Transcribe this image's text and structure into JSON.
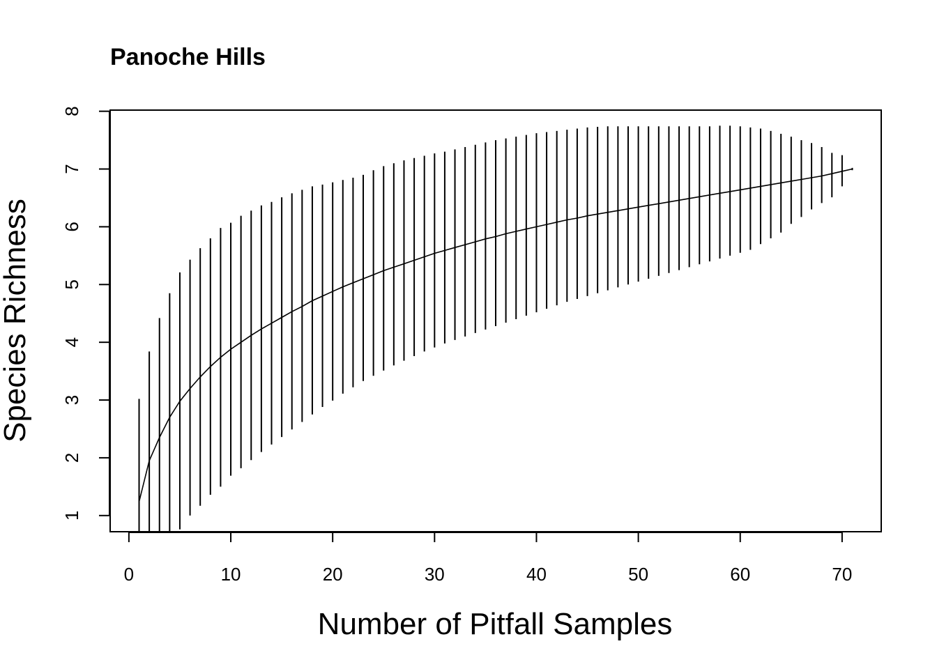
{
  "chart_data": {
    "type": "line",
    "title": "Panoche Hills",
    "xlabel": "Number of Pitfall Samples",
    "ylabel": "Species Richness",
    "xlim": [
      -1.84,
      73.84
    ],
    "ylim": [
      0.72,
      8.02
    ],
    "xticks": [
      0,
      10,
      20,
      30,
      40,
      50,
      60,
      70
    ],
    "yticks": [
      1,
      2,
      3,
      4,
      5,
      6,
      7,
      8
    ],
    "grid": false,
    "legend": "none",
    "series": [
      {
        "x": [
          1,
          2,
          3,
          4,
          5,
          6,
          7,
          8,
          9,
          10,
          11,
          12,
          13,
          14,
          15,
          16,
          17,
          18,
          19,
          20,
          21,
          22,
          23,
          24,
          25,
          26,
          27,
          28,
          29,
          30,
          31,
          32,
          33,
          34,
          35,
          36,
          37,
          38,
          39,
          40,
          41,
          42,
          43,
          44,
          45,
          46,
          47,
          48,
          49,
          50,
          51,
          52,
          53,
          54,
          55,
          56,
          57,
          58,
          59,
          60,
          61,
          62,
          63,
          64,
          65,
          66,
          67,
          68,
          69,
          70,
          71
        ],
        "y": [
          1.24,
          1.95,
          2.35,
          2.7,
          2.98,
          3.2,
          3.4,
          3.58,
          3.74,
          3.88,
          4.0,
          4.12,
          4.23,
          4.33,
          4.43,
          4.53,
          4.62,
          4.72,
          4.8,
          4.88,
          4.96,
          5.03,
          5.1,
          5.17,
          5.24,
          5.3,
          5.36,
          5.42,
          5.48,
          5.54,
          5.59,
          5.64,
          5.69,
          5.74,
          5.79,
          5.83,
          5.88,
          5.92,
          5.96,
          6.0,
          6.04,
          6.08,
          6.12,
          6.15,
          6.19,
          6.22,
          6.25,
          6.28,
          6.31,
          6.34,
          6.37,
          6.4,
          6.43,
          6.46,
          6.49,
          6.52,
          6.55,
          6.58,
          6.61,
          6.64,
          6.67,
          6.7,
          6.73,
          6.76,
          6.79,
          6.82,
          6.85,
          6.88,
          6.92,
          6.96,
          7.0
        ],
        "lower": [
          -0.53,
          0.07,
          0.29,
          0.55,
          0.76,
          1.0,
          1.17,
          1.36,
          1.5,
          1.69,
          1.82,
          1.96,
          2.1,
          2.23,
          2.36,
          2.49,
          2.62,
          2.75,
          2.88,
          2.99,
          3.11,
          3.22,
          3.33,
          3.42,
          3.51,
          3.6,
          3.68,
          3.76,
          3.84,
          3.91,
          3.98,
          4.04,
          4.1,
          4.16,
          4.22,
          4.28,
          4.34,
          4.4,
          4.46,
          4.52,
          4.58,
          4.64,
          4.7,
          4.75,
          4.8,
          4.85,
          4.9,
          4.95,
          5.0,
          5.05,
          5.1,
          5.15,
          5.2,
          5.25,
          5.3,
          5.35,
          5.4,
          5.45,
          5.5,
          5.55,
          5.6,
          5.7,
          5.8,
          5.9,
          6.05,
          6.17,
          6.3,
          6.41,
          6.51,
          6.7,
          6.98
        ],
        "upper": [
          3.02,
          3.84,
          4.42,
          4.85,
          5.21,
          5.43,
          5.63,
          5.8,
          5.98,
          6.07,
          6.19,
          6.28,
          6.37,
          6.43,
          6.51,
          6.58,
          6.64,
          6.7,
          6.73,
          6.77,
          6.81,
          6.85,
          6.9,
          6.98,
          7.05,
          7.1,
          7.15,
          7.19,
          7.23,
          7.27,
          7.3,
          7.34,
          7.38,
          7.42,
          7.46,
          7.5,
          7.53,
          7.56,
          7.59,
          7.62,
          7.64,
          7.66,
          7.68,
          7.7,
          7.72,
          7.73,
          7.74,
          7.74,
          7.74,
          7.74,
          7.74,
          7.74,
          7.74,
          7.74,
          7.74,
          7.74,
          7.74,
          7.75,
          7.75,
          7.74,
          7.72,
          7.7,
          7.66,
          7.61,
          7.56,
          7.5,
          7.45,
          7.38,
          7.28,
          7.24,
          7.02
        ]
      }
    ]
  }
}
